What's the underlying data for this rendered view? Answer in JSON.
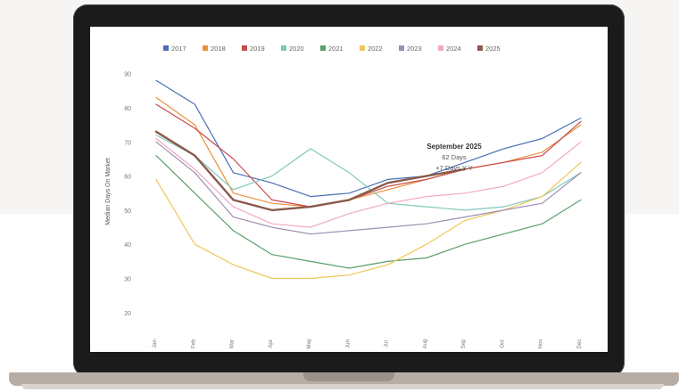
{
  "chart_data": {
    "type": "line",
    "title": "",
    "ylabel": "Median Days On Market",
    "xlabel": "",
    "ylim": [
      15,
      92
    ],
    "yticks": [
      20,
      30,
      40,
      50,
      60,
      70,
      80,
      90
    ],
    "months": [
      "Jan",
      "Feb",
      "Mar",
      "Apr",
      "May",
      "Jun",
      "Jul",
      "Aug",
      "Sep",
      "Oct",
      "Nov",
      "Dec"
    ],
    "series": [
      {
        "name": "2017",
        "color": "#4a6fb5",
        "values": [
          88,
          81,
          61,
          58,
          54,
          55,
          59,
          60,
          64,
          68,
          71,
          77
        ]
      },
      {
        "name": "2018",
        "color": "#e8923a",
        "values": [
          83,
          75,
          55,
          52,
          51,
          53,
          56,
          59,
          62,
          64,
          67,
          75
        ]
      },
      {
        "name": "2019",
        "color": "#c94a4a",
        "values": [
          81,
          74,
          65,
          53,
          51,
          53,
          57,
          59,
          62,
          64,
          66,
          76
        ]
      },
      {
        "name": "2020",
        "color": "#7fc8b8",
        "values": [
          72,
          66,
          56,
          60,
          68,
          61,
          52,
          51,
          50,
          51,
          54,
          61
        ]
      },
      {
        "name": "2021",
        "color": "#5a9e6a",
        "values": [
          66,
          55,
          44,
          37,
          35,
          33,
          35,
          36,
          40,
          43,
          46,
          53
        ]
      },
      {
        "name": "2022",
        "color": "#f0c65a",
        "values": [
          59,
          40,
          34,
          30,
          30,
          31,
          34,
          40,
          47,
          50,
          54,
          64
        ]
      },
      {
        "name": "2023",
        "color": "#9e8fb0",
        "values": [
          70,
          61,
          48,
          45,
          43,
          44,
          45,
          46,
          48,
          50,
          52,
          61
        ]
      },
      {
        "name": "2024",
        "color": "#f2a9c4",
        "values": [
          71,
          62,
          51,
          46,
          45,
          49,
          52,
          54,
          55,
          57,
          61,
          70
        ]
      },
      {
        "name": "2025",
        "color": "#8a5a4a",
        "values": [
          73,
          66,
          53,
          50,
          51,
          53,
          58,
          60,
          62
        ]
      }
    ],
    "annotation": {
      "title": "September 2025",
      "line1": "62 Days",
      "line2": "+7 Days Y-Y"
    },
    "legend_position": "top",
    "grid": false
  }
}
